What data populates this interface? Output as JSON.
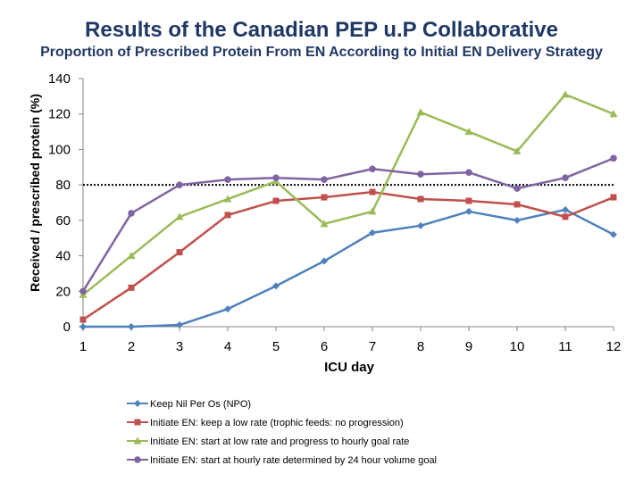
{
  "chart_data": {
    "type": "line",
    "title": "Results of the Canadian PEP u.P Collaborative",
    "subtitle": "Proportion of Prescribed Protein From EN According to Initial EN Delivery Strategy",
    "xlabel": "ICU day",
    "ylabel": "Received / prescribed protein (%)",
    "ylim": [
      0,
      140
    ],
    "yticks": [
      0,
      20,
      40,
      60,
      80,
      100,
      120,
      140
    ],
    "x": [
      1,
      2,
      3,
      4,
      5,
      6,
      7,
      8,
      9,
      10,
      11,
      12
    ],
    "reference_line": 80,
    "series": [
      {
        "name": "Keep Nil Per Os (NPO)",
        "color": "#4f81bd",
        "marker": "diamond",
        "values": [
          0,
          0,
          1,
          10,
          23,
          37,
          53,
          57,
          65,
          60,
          66,
          52
        ]
      },
      {
        "name": "Initiate EN: keep a low rate (trophic feeds: no progression)",
        "color": "#c0504d",
        "marker": "square",
        "values": [
          4,
          22,
          42,
          63,
          71,
          73,
          76,
          72,
          71,
          69,
          62,
          73
        ]
      },
      {
        "name": "Initiate EN: start at low rate and progress to hourly goal rate",
        "color": "#9bbb59",
        "marker": "triangle",
        "values": [
          18,
          40,
          62,
          72,
          82,
          58,
          65,
          121,
          110,
          99,
          131,
          120
        ]
      },
      {
        "name": "Initiate EN: start at hourly rate determined by 24 hour volume goal",
        "color": "#8064a2",
        "marker": "circle",
        "values": [
          20,
          64,
          80,
          83,
          84,
          83,
          89,
          86,
          87,
          78,
          84,
          95
        ]
      }
    ]
  }
}
